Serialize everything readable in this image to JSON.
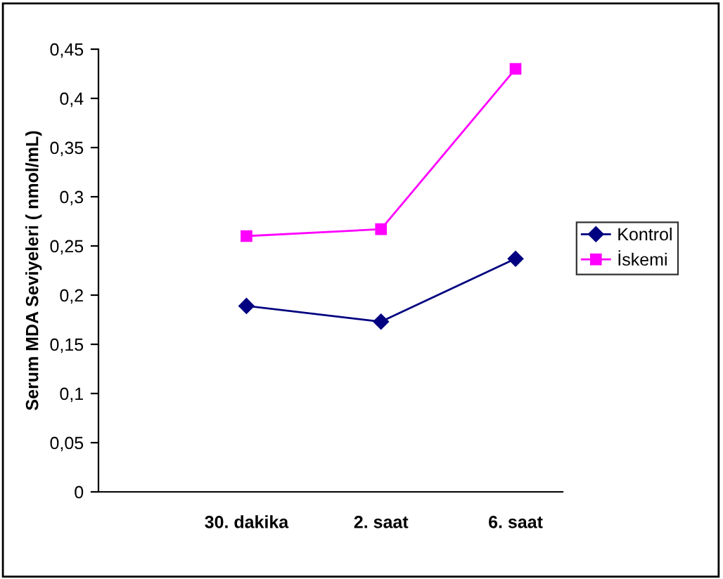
{
  "chart_data": {
    "type": "line",
    "ylabel": "Serum MDA Seviyeleri ( nmol/mL)",
    "categories": [
      "30. dakika",
      "2. saat",
      "6. saat"
    ],
    "series": [
      {
        "name": "Kontrol",
        "color": "#000080",
        "marker": "diamond",
        "values": [
          0.189,
          0.173,
          0.237
        ]
      },
      {
        "name": "İskemi",
        "color": "#ff00ff",
        "marker": "square",
        "values": [
          0.26,
          0.267,
          0.43
        ]
      }
    ],
    "ylim": [
      0,
      0.45
    ],
    "yticks": [
      {
        "value": 0,
        "label": "0"
      },
      {
        "value": 0.05,
        "label": "0,05"
      },
      {
        "value": 0.1,
        "label": "0,1"
      },
      {
        "value": 0.15,
        "label": "0,15"
      },
      {
        "value": 0.2,
        "label": "0,2"
      },
      {
        "value": 0.25,
        "label": "0,25"
      },
      {
        "value": 0.3,
        "label": "0,3"
      },
      {
        "value": 0.35,
        "label": "0,35"
      },
      {
        "value": 0.4,
        "label": "0,4"
      },
      {
        "value": 0.45,
        "label": "0,45"
      }
    ],
    "grid": false,
    "legend": "right",
    "line_style": "solid"
  }
}
